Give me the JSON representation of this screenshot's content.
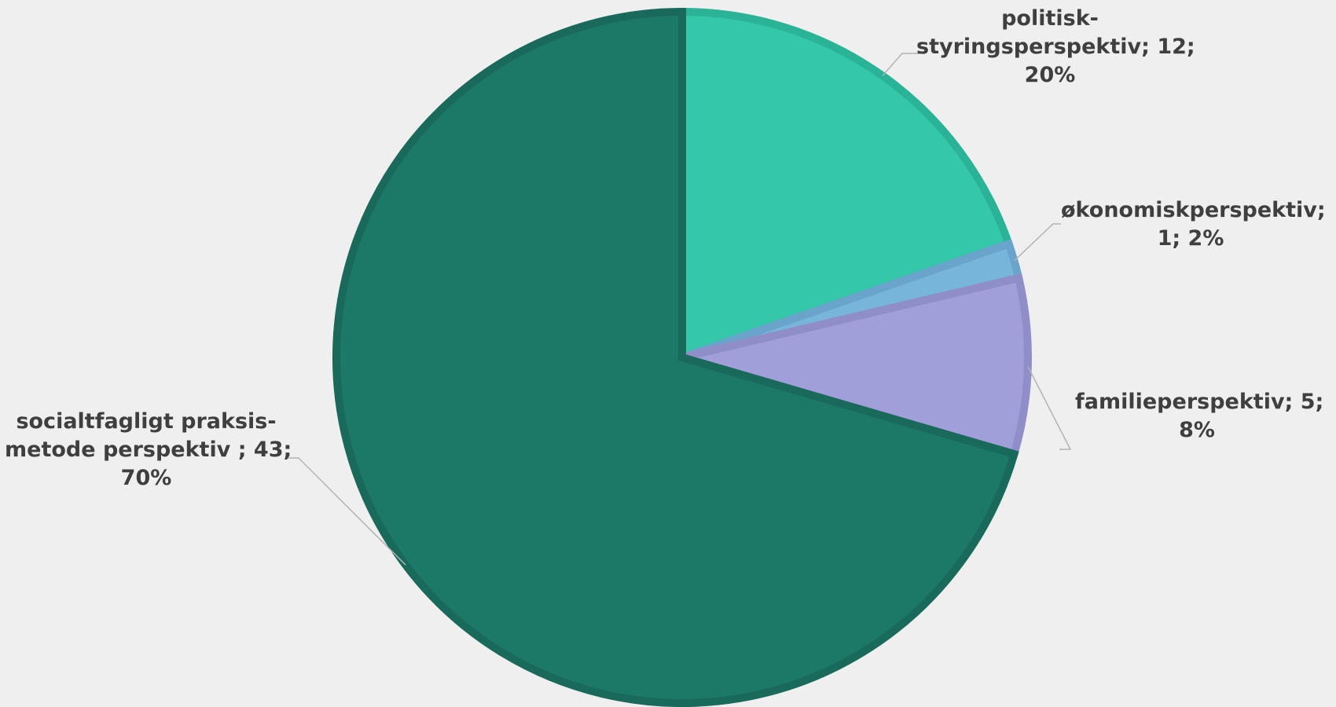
{
  "chart_data": {
    "type": "pie",
    "start_angle_deg": 0,
    "direction": "clockwise",
    "slices": [
      {
        "name": "politisk-styringsperspektiv",
        "value": 12,
        "percent": "20%",
        "color": "#34c7a9",
        "border": "#2bb397",
        "label_lines": [
          "politisk-",
          "styringsperspektiv; 12;",
          "20%"
        ]
      },
      {
        "name": "økonomiskperspektiv",
        "value": 1,
        "percent": "2%",
        "color": "#77b5db",
        "border": "#6aa3cc",
        "label_lines": [
          "økonomiskperspektiv;",
          "1; 2%"
        ]
      },
      {
        "name": "familieperspektiv",
        "value": 5,
        "percent": "8%",
        "color": "#a09fda",
        "border": "#908ec8",
        "label_lines": [
          "familieperspektiv; 5;",
          "8%"
        ]
      },
      {
        "name": "socialtfagligt praksis-metode perspektiv",
        "value": 43,
        "percent": "70%",
        "color": "#1d7967",
        "border": "#196a5a",
        "label_lines": [
          "socialtfagligt praksis-",
          "metode perspektiv ; 43;",
          "70%"
        ]
      }
    ]
  }
}
